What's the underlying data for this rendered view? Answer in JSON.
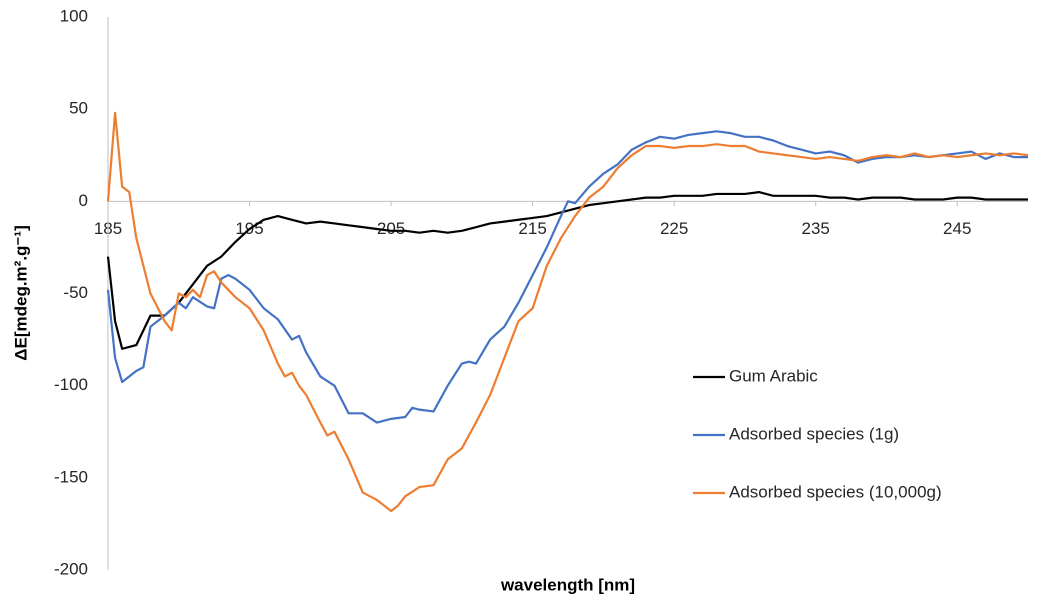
{
  "chart_data": {
    "type": "line",
    "x_label": "wavelength [nm]",
    "y_label": "ΔE[mdeg.m².g⁻¹]",
    "xlim": [
      185,
      250
    ],
    "xticks": [
      185,
      195,
      205,
      215,
      225,
      235,
      245
    ],
    "ylim": [
      -200,
      100
    ],
    "yticks": [
      -200,
      -150,
      -100,
      -50,
      0,
      50,
      100
    ],
    "grid": false,
    "legend": "right",
    "series": [
      {
        "name": "Gum Arabic",
        "color": "#000000",
        "x": [
          185,
          185.5,
          186,
          187,
          188,
          189,
          190,
          191,
          192,
          193,
          194,
          195,
          196,
          197,
          198,
          199,
          200,
          201,
          202,
          203,
          204,
          205,
          206,
          207,
          208,
          209,
          210,
          211,
          212,
          213,
          214,
          215,
          216,
          217,
          218,
          219,
          220,
          221,
          222,
          223,
          224,
          225,
          226,
          227,
          228,
          229,
          230,
          231,
          232,
          233,
          234,
          235,
          236,
          237,
          238,
          239,
          240,
          241,
          242,
          243,
          244,
          245,
          246,
          247,
          248,
          249,
          250
        ],
        "values": [
          -30,
          -65,
          -80,
          -78,
          -62,
          -62,
          -55,
          -45,
          -35,
          -30,
          -22,
          -15,
          -10,
          -8,
          -10,
          -12,
          -11,
          -12,
          -13,
          -14,
          -15,
          -16,
          -16,
          -17,
          -16,
          -17,
          -16,
          -14,
          -12,
          -11,
          -10,
          -9,
          -8,
          -6,
          -4,
          -2,
          -1,
          0,
          1,
          2,
          2,
          3,
          3,
          3,
          4,
          4,
          4,
          5,
          3,
          3,
          3,
          3,
          2,
          2,
          1,
          2,
          2,
          2,
          1,
          1,
          1,
          2,
          2,
          1,
          1,
          1,
          1
        ]
      },
      {
        "name": "Adsorbed species (1g)",
        "color": "#4472c4",
        "x": [
          185,
          185.5,
          186,
          187,
          187.5,
          188,
          189,
          190,
          190.5,
          191,
          192,
          192.5,
          193,
          193.5,
          194,
          195,
          196,
          197,
          198,
          198.5,
          199,
          200,
          201,
          202,
          203,
          204,
          205,
          206,
          206.5,
          207,
          208,
          209,
          210,
          210.5,
          211,
          212,
          213,
          214,
          215,
          216,
          217,
          217.5,
          218,
          219,
          220,
          221,
          222,
          223,
          224,
          225,
          226,
          227,
          228,
          229,
          230,
          231,
          232,
          233,
          234,
          235,
          236,
          237,
          238,
          239,
          240,
          241,
          242,
          243,
          244,
          245,
          246,
          247,
          248,
          249,
          250
        ],
        "values": [
          -48,
          -85,
          -98,
          -92,
          -90,
          -68,
          -62,
          -55,
          -58,
          -52,
          -57,
          -58,
          -42,
          -40,
          -42,
          -48,
          -58,
          -64,
          -75,
          -73,
          -82,
          -95,
          -100,
          -115,
          -115,
          -120,
          -118,
          -117,
          -112,
          -113,
          -114,
          -100,
          -88,
          -87,
          -88,
          -75,
          -68,
          -55,
          -40,
          -25,
          -8,
          0,
          -1,
          8,
          15,
          20,
          28,
          32,
          35,
          34,
          36,
          37,
          38,
          37,
          35,
          35,
          33,
          30,
          28,
          26,
          27,
          25,
          21,
          23,
          24,
          24,
          25,
          24,
          25,
          26,
          27,
          23,
          26,
          24,
          24
        ]
      },
      {
        "name": "Adsorbed species (10,000g)",
        "color": "#ed7d31",
        "x": [
          185,
          185.5,
          186,
          186.5,
          187,
          188,
          189,
          189.5,
          190,
          190.5,
          191,
          191.5,
          192,
          192.5,
          193,
          194,
          195,
          196,
          197,
          197.5,
          198,
          198.5,
          199,
          200,
          200.5,
          201,
          202,
          203,
          204,
          205,
          205.5,
          206,
          207,
          208,
          209,
          210,
          211,
          212,
          213,
          214,
          215,
          216,
          217,
          218,
          219,
          220,
          221,
          222,
          223,
          224,
          225,
          226,
          227,
          228,
          229,
          230,
          231,
          232,
          233,
          234,
          235,
          236,
          237,
          238,
          239,
          240,
          241,
          242,
          243,
          244,
          245,
          246,
          247,
          248,
          249,
          250
        ],
        "values": [
          0,
          48,
          8,
          5,
          -20,
          -50,
          -65,
          -70,
          -50,
          -52,
          -48,
          -52,
          -40,
          -38,
          -44,
          -52,
          -58,
          -70,
          -88,
          -95,
          -93,
          -100,
          -105,
          -120,
          -127,
          -125,
          -140,
          -158,
          -162,
          -168,
          -165,
          -160,
          -155,
          -154,
          -140,
          -134,
          -120,
          -105,
          -85,
          -65,
          -58,
          -35,
          -20,
          -8,
          2,
          8,
          18,
          25,
          30,
          30,
          29,
          30,
          30,
          31,
          30,
          30,
          27,
          26,
          25,
          24,
          23,
          24,
          23,
          22,
          24,
          25,
          24,
          26,
          24,
          25,
          24,
          25,
          26,
          25,
          26,
          25
        ]
      }
    ]
  }
}
